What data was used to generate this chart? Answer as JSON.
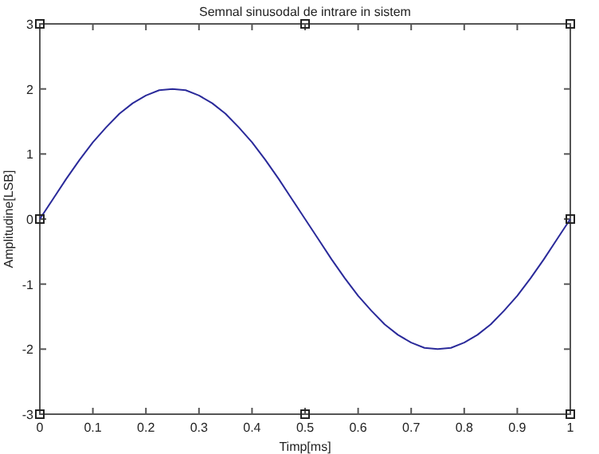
{
  "chart_data": {
    "type": "line",
    "title": "Semnal sinusodal de intrare in sistem",
    "xlabel": "Timp[ms]",
    "ylabel": "Amplitudine[LSB]",
    "x": [
      0,
      0.025,
      0.05,
      0.075,
      0.1,
      0.125,
      0.15,
      0.175,
      0.2,
      0.225,
      0.25,
      0.275,
      0.3,
      0.325,
      0.35,
      0.375,
      0.4,
      0.425,
      0.45,
      0.475,
      0.5,
      0.525,
      0.55,
      0.575,
      0.6,
      0.625,
      0.65,
      0.675,
      0.7,
      0.725,
      0.75,
      0.775,
      0.8,
      0.825,
      0.85,
      0.875,
      0.9,
      0.925,
      0.95,
      0.975,
      1
    ],
    "series": [
      {
        "color": "#2a2a9a",
        "values": [
          0,
          0.31,
          0.62,
          0.91,
          1.18,
          1.41,
          1.62,
          1.78,
          1.9,
          1.98,
          2,
          1.98,
          1.9,
          1.78,
          1.62,
          1.41,
          1.18,
          0.91,
          0.62,
          0.31,
          0,
          -0.31,
          -0.62,
          -0.91,
          -1.18,
          -1.41,
          -1.62,
          -1.78,
          -1.9,
          -1.98,
          -2,
          -1.98,
          -1.9,
          -1.78,
          -1.62,
          -1.41,
          -1.18,
          -0.91,
          -0.62,
          -0.31,
          0
        ]
      },
      {
        "type": "scatter",
        "color": "#222222",
        "marker": "square",
        "x": [
          0,
          0.5,
          1,
          0,
          1,
          0,
          0.5,
          1
        ],
        "values": [
          3,
          3,
          3,
          0,
          0,
          -3,
          -3,
          -3
        ]
      }
    ],
    "xlim": [
      0,
      1
    ],
    "ylim": [
      -3,
      3
    ],
    "xticks": [
      0,
      0.1,
      0.2,
      0.3,
      0.4,
      0.5,
      0.6,
      0.7,
      0.8,
      0.9,
      1
    ],
    "yticks": [
      -3,
      -2,
      -1,
      0,
      1,
      2,
      3
    ],
    "grid": false,
    "marker": "none",
    "line_style": "solid"
  }
}
